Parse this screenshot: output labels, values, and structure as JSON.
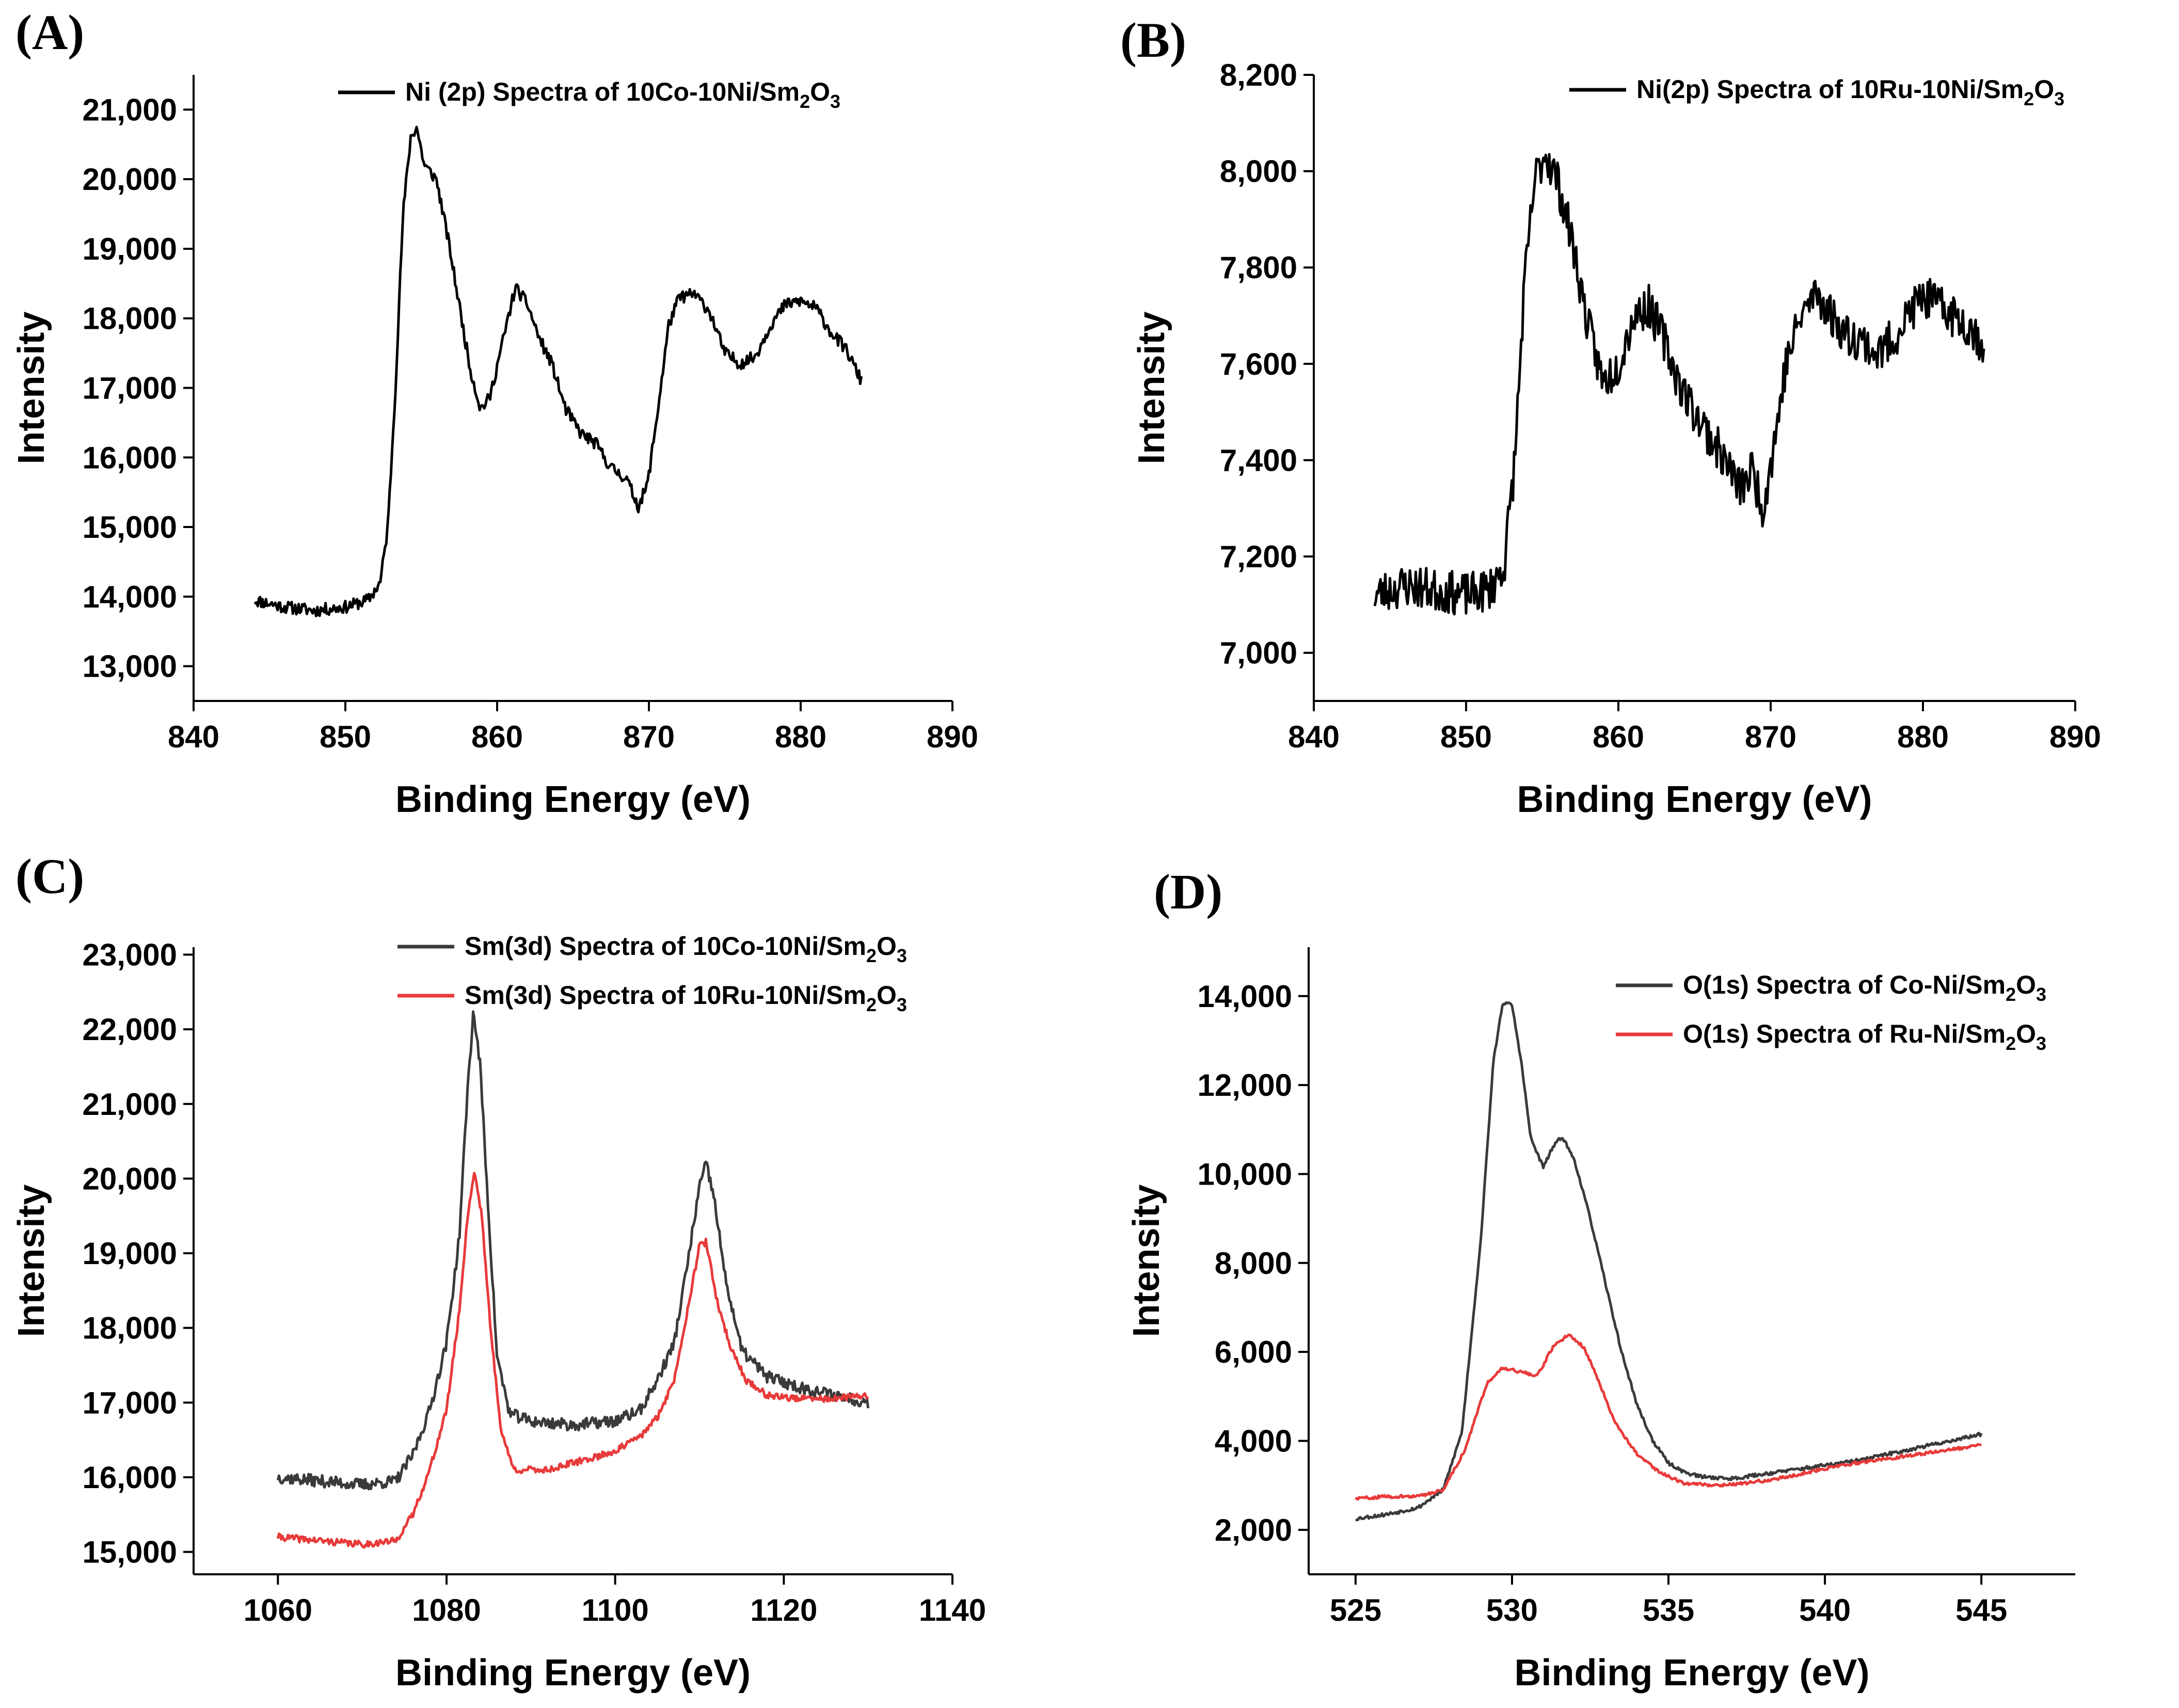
{
  "colors": {
    "black": "#000000",
    "dark_gray": "#3a3a3a",
    "red": "#e83a3a"
  },
  "chart_data": [
    {
      "panel": "(A)",
      "type": "line",
      "title": "",
      "xlabel": "Binding Energy (eV)",
      "ylabel": "Intensity",
      "xlim": [
        840,
        890
      ],
      "ylim": [
        12500,
        21500
      ],
      "xticks": [
        840,
        850,
        860,
        870,
        880,
        890
      ],
      "yticks": [
        13000,
        14000,
        15000,
        16000,
        17000,
        18000,
        19000,
        20000,
        21000
      ],
      "series": [
        {
          "name": "Ni (2p) Spectra of 10Co-10Ni/Sm2O3",
          "legend_main": "Ni (2p) Spectra of 10Co-10Ni/Sm",
          "legend_sub1": "2",
          "legend_mid": "O",
          "legend_sub2": "3",
          "color": "#000000",
          "noise": 90,
          "seed": 11,
          "points": [
            [
              844,
              13950
            ],
            [
              846,
              13850
            ],
            [
              848,
              13800
            ],
            [
              850,
              13850
            ],
            [
              851.5,
              13950
            ],
            [
              852.3,
              14200
            ],
            [
              852.8,
              15000
            ],
            [
              853.3,
              17000
            ],
            [
              853.8,
              19500
            ],
            [
              854.3,
              20600
            ],
            [
              854.7,
              20750
            ],
            [
              855.2,
              20200
            ],
            [
              856,
              20000
            ],
            [
              856.8,
              19100
            ],
            [
              857.5,
              18200
            ],
            [
              858.2,
              17300
            ],
            [
              858.9,
              16700
            ],
            [
              859.5,
              16850
            ],
            [
              860.3,
              17600
            ],
            [
              861.2,
              18450
            ],
            [
              862,
              18200
            ],
            [
              862.8,
              17700
            ],
            [
              863.6,
              17350
            ],
            [
              864.5,
              16700
            ],
            [
              865.5,
              16350
            ],
            [
              866.5,
              16200
            ],
            [
              867.5,
              15850
            ],
            [
              868.5,
              15700
            ],
            [
              869.3,
              15300
            ],
            [
              869.9,
              15600
            ],
            [
              870.6,
              16700
            ],
            [
              871.3,
              17900
            ],
            [
              872,
              18300
            ],
            [
              873,
              18350
            ],
            [
              874,
              18100
            ],
            [
              875,
              17500
            ],
            [
              876,
              17350
            ],
            [
              877,
              17450
            ],
            [
              878,
              17900
            ],
            [
              879,
              18200
            ],
            [
              880,
              18250
            ],
            [
              881,
              18150
            ],
            [
              882,
              17800
            ],
            [
              883,
              17550
            ],
            [
              884,
              17100
            ]
          ]
        }
      ]
    },
    {
      "panel": "(B)",
      "type": "line",
      "title": "",
      "xlabel": "Binding Energy (eV)",
      "ylabel": "Intensity",
      "xlim": [
        840,
        890
      ],
      "ylim": [
        6900,
        8200
      ],
      "xticks": [
        840,
        850,
        860,
        870,
        880,
        890
      ],
      "yticks": [
        7000,
        7200,
        7400,
        7600,
        7800,
        8000,
        8200
      ],
      "series": [
        {
          "name": "Ni(2p) Spectra of 10Ru-10Ni/Sm2O3",
          "legend_main": "Ni(2p) Spectra of 10Ru-10Ni/Sm",
          "legend_sub1": "2",
          "legend_mid": "O",
          "legend_sub2": "3",
          "color": "#000000",
          "noise": 45,
          "seed": 23,
          "points": [
            [
              844,
              7120
            ],
            [
              846,
              7140
            ],
            [
              848,
              7130
            ],
            [
              850,
              7120
            ],
            [
              851.5,
              7130
            ],
            [
              852.5,
              7180
            ],
            [
              853.2,
              7400
            ],
            [
              853.8,
              7750
            ],
            [
              854.5,
              7980
            ],
            [
              855.2,
              8040
            ],
            [
              856,
              7980
            ],
            [
              857,
              7850
            ],
            [
              858,
              7680
            ],
            [
              859,
              7560
            ],
            [
              860,
              7600
            ],
            [
              861,
              7700
            ],
            [
              862,
              7720
            ],
            [
              863,
              7650
            ],
            [
              864,
              7560
            ],
            [
              865,
              7500
            ],
            [
              866,
              7450
            ],
            [
              867,
              7400
            ],
            [
              868,
              7340
            ],
            [
              868.8,
              7380
            ],
            [
              869.5,
              7300
            ],
            [
              870.3,
              7450
            ],
            [
              871,
              7600
            ],
            [
              872,
              7700
            ],
            [
              873,
              7750
            ],
            [
              874,
              7700
            ],
            [
              875,
              7660
            ],
            [
              876,
              7650
            ],
            [
              877,
              7620
            ],
            [
              878,
              7650
            ],
            [
              879,
              7700
            ],
            [
              880,
              7740
            ],
            [
              881,
              7720
            ],
            [
              882,
              7700
            ],
            [
              883,
              7680
            ],
            [
              884,
              7640
            ]
          ]
        }
      ]
    },
    {
      "panel": "(C)",
      "type": "line",
      "title": "",
      "xlabel": "Binding Energy (eV)",
      "ylabel": "Intensity",
      "xlim": [
        1050,
        1140
      ],
      "ylim": [
        14700,
        23100
      ],
      "xticks": [
        1060,
        1080,
        1100,
        1120,
        1140
      ],
      "yticks": [
        15000,
        16000,
        17000,
        18000,
        19000,
        20000,
        21000,
        22000,
        23000
      ],
      "series": [
        {
          "name": "Sm(3d) Spectra of 10Co-10Ni/Sm2O3",
          "legend_main": "Sm(3d) Spectra of 10Co-10Ni/Sm",
          "legend_sub1": "2",
          "legend_mid": "O",
          "legend_sub2": "3",
          "color": "#3a3a3a",
          "noise": 80,
          "seed": 37,
          "points": [
            [
              1060,
              16000
            ],
            [
              1065,
              15950
            ],
            [
              1070,
              15900
            ],
            [
              1074,
              15950
            ],
            [
              1076,
              16300
            ],
            [
              1078,
              16900
            ],
            [
              1080,
              17800
            ],
            [
              1081.5,
              19200
            ],
            [
              1082.5,
              21200
            ],
            [
              1083.2,
              22250
            ],
            [
              1084,
              21500
            ],
            [
              1085,
              19500
            ],
            [
              1086,
              17600
            ],
            [
              1087.5,
              16850
            ],
            [
              1090,
              16750
            ],
            [
              1095,
              16700
            ],
            [
              1100,
              16750
            ],
            [
              1103,
              16900
            ],
            [
              1105,
              17300
            ],
            [
              1107,
              17800
            ],
            [
              1108.5,
              18800
            ],
            [
              1110,
              19900
            ],
            [
              1110.8,
              20200
            ],
            [
              1111.8,
              19700
            ],
            [
              1113,
              18700
            ],
            [
              1115,
              17700
            ],
            [
              1118,
              17350
            ],
            [
              1122,
              17200
            ],
            [
              1126,
              17100
            ],
            [
              1130,
              17000
            ]
          ]
        },
        {
          "name": "Sm(3d) Spectra of 10Ru-10Ni/Sm2O3",
          "legend_main": "Sm(3d) Spectra of 10Ru-10Ni/Sm",
          "legend_sub1": "2",
          "legend_mid": "O",
          "legend_sub2": "3",
          "color": "#e83a3a",
          "noise": 45,
          "seed": 41,
          "points": [
            [
              1060,
              15200
            ],
            [
              1065,
              15150
            ],
            [
              1070,
              15100
            ],
            [
              1074,
              15150
            ],
            [
              1076,
              15500
            ],
            [
              1078,
              16100
            ],
            [
              1080,
              16900
            ],
            [
              1081.5,
              18200
            ],
            [
              1082.5,
              19500
            ],
            [
              1083.3,
              20100
            ],
            [
              1084.2,
              19500
            ],
            [
              1085.2,
              18000
            ],
            [
              1086.5,
              16600
            ],
            [
              1088,
              16100
            ],
            [
              1092,
              16100
            ],
            [
              1097,
              16250
            ],
            [
              1100,
              16350
            ],
            [
              1103,
              16550
            ],
            [
              1105,
              16800
            ],
            [
              1107,
              17300
            ],
            [
              1108.5,
              18200
            ],
            [
              1110,
              19100
            ],
            [
              1110.8,
              19150
            ],
            [
              1112,
              18400
            ],
            [
              1113.5,
              17800
            ],
            [
              1115.5,
              17300
            ],
            [
              1118,
              17100
            ],
            [
              1122,
              17050
            ],
            [
              1126,
              17050
            ],
            [
              1130,
              17100
            ]
          ]
        }
      ]
    },
    {
      "panel": "(D)",
      "type": "line",
      "title": "",
      "xlabel": "Binding Energy (eV)",
      "ylabel": "Intensity",
      "xlim": [
        523.5,
        548
      ],
      "ylim": [
        1000,
        15100
      ],
      "xticks": [
        525,
        530,
        535,
        540,
        545
      ],
      "yticks": [
        2000,
        4000,
        6000,
        8000,
        10000,
        12000,
        14000
      ],
      "series": [
        {
          "name": "O(1s) Spectra of Co-Ni/Sm2O3",
          "legend_main": "O(1s) Spectra of Co-Ni/Sm",
          "legend_sub1": "2",
          "legend_mid": "O",
          "legend_sub2": "3",
          "color": "#3a3a3a",
          "noise": 40,
          "seed": 53,
          "points": [
            [
              525,
              2250
            ],
            [
              526,
              2350
            ],
            [
              527,
              2500
            ],
            [
              527.8,
              2900
            ],
            [
              528.4,
              4200
            ],
            [
              529,
              8500
            ],
            [
              529.4,
              12500
            ],
            [
              529.7,
              13850
            ],
            [
              530,
              13800
            ],
            [
              530.3,
              12500
            ],
            [
              530.6,
              10800
            ],
            [
              531,
              10150
            ],
            [
              531.3,
              10600
            ],
            [
              531.6,
              10850
            ],
            [
              532,
              10300
            ],
            [
              532.5,
              9000
            ],
            [
              533,
              7500
            ],
            [
              533.5,
              6000
            ],
            [
              534,
              4800
            ],
            [
              534.5,
              4000
            ],
            [
              535,
              3500
            ],
            [
              535.5,
              3300
            ],
            [
              536,
              3200
            ],
            [
              537,
              3150
            ],
            [
              538,
              3250
            ],
            [
              539,
              3350
            ],
            [
              540,
              3450
            ],
            [
              541,
              3550
            ],
            [
              542,
              3700
            ],
            [
              543,
              3850
            ],
            [
              544,
              4000
            ],
            [
              545,
              4150
            ]
          ]
        },
        {
          "name": "O(1s) Spectra of Ru-Ni/Sm2O3",
          "legend_main": "O(1s) Spectra of Ru-Ni/Sm",
          "legend_sub1": "2",
          "legend_mid": "O",
          "legend_sub2": "3",
          "color": "#e83a3a",
          "noise": 35,
          "seed": 59,
          "points": [
            [
              525,
              2700
            ],
            [
              526,
              2750
            ],
            [
              527,
              2750
            ],
            [
              527.8,
              2900
            ],
            [
              528.5,
              3800
            ],
            [
              529.2,
              5300
            ],
            [
              529.7,
              5650
            ],
            [
              530.3,
              5550
            ],
            [
              530.8,
              5450
            ],
            [
              531.3,
              6100
            ],
            [
              531.8,
              6400
            ],
            [
              532.3,
              6100
            ],
            [
              532.8,
              5300
            ],
            [
              533.3,
              4400
            ],
            [
              534,
              3700
            ],
            [
              534.7,
              3300
            ],
            [
              535.5,
              3050
            ],
            [
              536.5,
              3000
            ],
            [
              537.5,
              3050
            ],
            [
              538.5,
              3150
            ],
            [
              539.5,
              3300
            ],
            [
              540.5,
              3450
            ],
            [
              541.5,
              3550
            ],
            [
              542.5,
              3650
            ],
            [
              543.5,
              3750
            ],
            [
              544.5,
              3850
            ],
            [
              545,
              3950
            ]
          ]
        }
      ]
    }
  ]
}
